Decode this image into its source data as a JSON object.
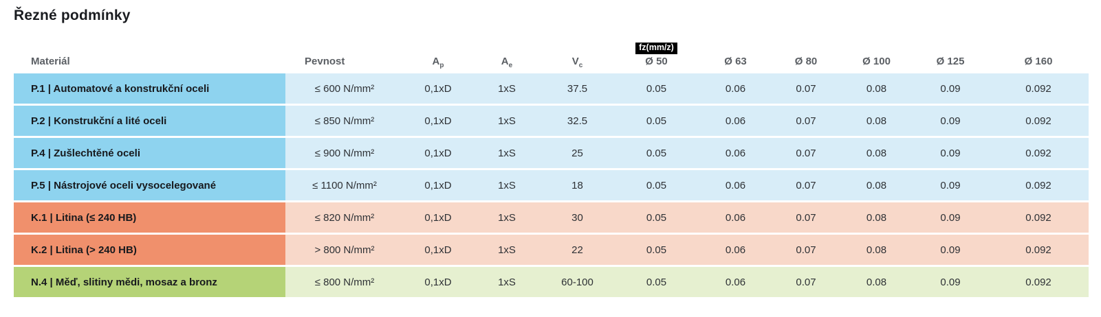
{
  "page": {
    "title": "Řezné podmínky"
  },
  "table": {
    "columns": [
      {
        "name": "material",
        "label": "Materiál"
      },
      {
        "name": "pevnost",
        "label": "Pevnost"
      },
      {
        "name": "ap",
        "label": "A",
        "sub": "p"
      },
      {
        "name": "ae",
        "label": "A",
        "sub": "e"
      },
      {
        "name": "vc",
        "label": "V",
        "sub": "c"
      },
      {
        "name": "d50",
        "label": "Ø 50",
        "badge": "fz(mm/z)"
      },
      {
        "name": "d63",
        "label": "Ø 63"
      },
      {
        "name": "d80",
        "label": "Ø 80"
      },
      {
        "name": "d100",
        "label": "Ø 100"
      },
      {
        "name": "d125",
        "label": "Ø 125"
      },
      {
        "name": "d160",
        "label": "Ø 160"
      }
    ],
    "rows": [
      {
        "group": "steel",
        "material": "P.1 | Automatové a konstrukční oceli",
        "pevnost": "≤ 600 N/mm²",
        "ap": "0,1xD",
        "ae": "1xS",
        "vc": "37.5",
        "fz": [
          "0.05",
          "0.06",
          "0.07",
          "0.08",
          "0.09",
          "0.092"
        ]
      },
      {
        "group": "steel",
        "material": "P.2 | Konstrukční a lité oceli",
        "pevnost": "≤ 850 N/mm²",
        "ap": "0,1xD",
        "ae": "1xS",
        "vc": "32.5",
        "fz": [
          "0.05",
          "0.06",
          "0.07",
          "0.08",
          "0.09",
          "0.092"
        ]
      },
      {
        "group": "steel",
        "material": "P.4 | Zušlechtěné oceli",
        "pevnost": "≤ 900 N/mm²",
        "ap": "0,1xD",
        "ae": "1xS",
        "vc": "25",
        "fz": [
          "0.05",
          "0.06",
          "0.07",
          "0.08",
          "0.09",
          "0.092"
        ]
      },
      {
        "group": "steel",
        "material": "P.5 | Nástrojové oceli vysocelegované",
        "pevnost": "≤ 1100 N/mm²",
        "ap": "0,1xD",
        "ae": "1xS",
        "vc": "18",
        "fz": [
          "0.05",
          "0.06",
          "0.07",
          "0.08",
          "0.09",
          "0.092"
        ]
      },
      {
        "group": "cast_iron",
        "material": "K.1 | Litina (≤ 240 HB)",
        "pevnost": "≤ 820 N/mm²",
        "ap": "0,1xD",
        "ae": "1xS",
        "vc": "30",
        "fz": [
          "0.05",
          "0.06",
          "0.07",
          "0.08",
          "0.09",
          "0.092"
        ]
      },
      {
        "group": "cast_iron",
        "material": "K.2 | Litina (> 240 HB)",
        "pevnost": "> 800 N/mm²",
        "ap": "0,1xD",
        "ae": "1xS",
        "vc": "22",
        "fz": [
          "0.05",
          "0.06",
          "0.07",
          "0.08",
          "0.09",
          "0.092"
        ]
      },
      {
        "group": "non_ferrous",
        "material": "N.4 | Měď, slitiny mědi, mosaz a bronz",
        "pevnost": "≤ 800 N/mm²",
        "ap": "0,1xD",
        "ae": "1xS",
        "vc": "60-100",
        "fz": [
          "0.05",
          "0.06",
          "0.07",
          "0.08",
          "0.09",
          "0.092"
        ]
      }
    ],
    "group_colors": {
      "steel": {
        "strong": "#8ed3ef",
        "light": "#d8edf8"
      },
      "cast_iron": {
        "strong": "#f0906c",
        "light": "#f8d8c9"
      },
      "non_ferrous": {
        "strong": "#b5d377",
        "light": "#e6f0d0"
      }
    },
    "badge_colors": {
      "background": "#000000",
      "text": "#ffffff"
    },
    "header_text_color": "#5b5f64"
  }
}
